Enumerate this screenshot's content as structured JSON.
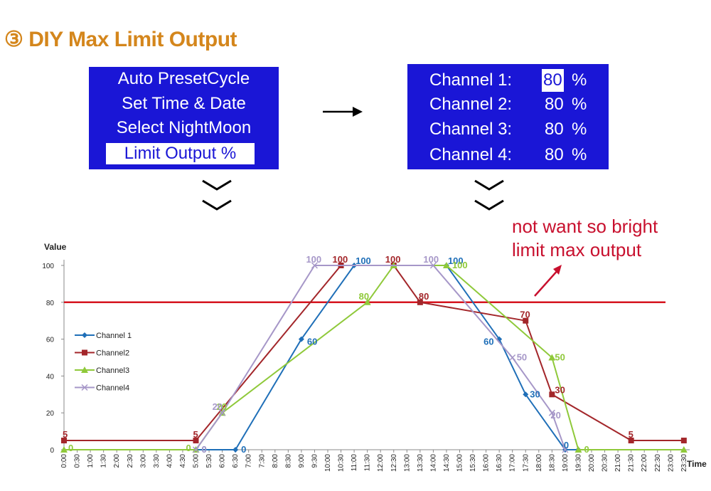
{
  "title": "③ DIY Max Limit Output",
  "menu": {
    "items": [
      "Auto PresetCycle",
      "Set Time & Date",
      "Select NightMoon",
      "Limit Output %"
    ],
    "selected_index": 3
  },
  "channels": [
    {
      "label": "Channel 1:",
      "value": "80",
      "unit": "%"
    },
    {
      "label": "Channel 2:",
      "value": "80",
      "unit": "%"
    },
    {
      "label": "Channel 3:",
      "value": "80",
      "unit": "%"
    },
    {
      "label": "Channel 4:",
      "value": "80",
      "unit": "%"
    }
  ],
  "annotation": [
    "not want so bright",
    "limit max output"
  ],
  "colors": {
    "panel": "#1a16d6",
    "title": "#d4861c",
    "annotation": "#c8102e",
    "limit_line": "#d6151f",
    "channel1": "#1f6fb8",
    "channel2": "#a3262a",
    "channel3": "#8fc93a",
    "channel4": "#a697c8"
  },
  "icons": {
    "arrow": "right-arrow-icon",
    "chevron": "double-chevron-down-icon",
    "pointer": "red-arrow-icon"
  },
  "chart_data": {
    "type": "line",
    "ylabel": "Value",
    "xlabel": "Time",
    "ylim": [
      0,
      100
    ],
    "yticks": [
      "0",
      "20",
      "40",
      "60",
      "80",
      "100"
    ],
    "x": [
      "0:00",
      "0:30",
      "1:00",
      "1:30",
      "2:00",
      "2:30",
      "3:00",
      "3:30",
      "4:00",
      "4:30",
      "5:00",
      "5:30",
      "6:00",
      "6:30",
      "7:00",
      "7:30",
      "8:00",
      "8:30",
      "9:00",
      "9:30",
      "10:00",
      "10:30",
      "11:00",
      "11:30",
      "12:00",
      "12:30",
      "13:00",
      "13:30",
      "14:00",
      "14:30",
      "15:00",
      "15:30",
      "16:00",
      "16:30",
      "17:00",
      "17:30",
      "18:00",
      "18:30",
      "19:00",
      "19:30",
      "20:00",
      "20:30",
      "21:00",
      "21:30",
      "22:00",
      "22:30",
      "23:00",
      "23:30"
    ],
    "limit": 80,
    "grid": false,
    "legend_position": "left",
    "series": [
      {
        "name": "Channel 1",
        "marker": "diamond",
        "points": [
          [
            "5:00",
            0
          ],
          [
            "6:30",
            0
          ],
          [
            "9:00",
            60
          ],
          [
            "11:00",
            100
          ],
          [
            "14:30",
            100
          ],
          [
            "16:30",
            60
          ],
          [
            "17:30",
            30
          ],
          [
            "19:00",
            0
          ],
          [
            "19:30",
            0
          ]
        ],
        "labels": [
          {
            "x": "5:00",
            "y": 0,
            "t": "0"
          },
          {
            "x": "6:30",
            "y": 0,
            "t": "0"
          },
          {
            "x": "9:00",
            "y": 60,
            "t": "60"
          },
          {
            "x": "11:00",
            "y": 100,
            "t": "100"
          },
          {
            "x": "14:30",
            "y": 100,
            "t": "100"
          },
          {
            "x": "16:30",
            "y": 60,
            "t": "60"
          },
          {
            "x": "17:30",
            "y": 30,
            "t": "30"
          },
          {
            "x": "19:00",
            "y": 0,
            "t": "0"
          }
        ]
      },
      {
        "name": "Channel2",
        "marker": "square",
        "points": [
          [
            "0:00",
            5
          ],
          [
            "5:00",
            5
          ],
          [
            "10:30",
            100
          ],
          [
            "12:30",
            100
          ],
          [
            "13:30",
            80
          ],
          [
            "17:30",
            70
          ],
          [
            "18:30",
            30
          ],
          [
            "21:30",
            5
          ],
          [
            "23:30",
            5
          ]
        ],
        "labels": [
          {
            "x": "0:00",
            "y": 5,
            "t": "5"
          },
          {
            "x": "5:00",
            "y": 5,
            "t": "5"
          },
          {
            "x": "10:30",
            "y": 100,
            "t": "100"
          },
          {
            "x": "12:30",
            "y": 100,
            "t": "100"
          },
          {
            "x": "13:30",
            "y": 80,
            "t": "80"
          },
          {
            "x": "17:30",
            "y": 70,
            "t": "70"
          },
          {
            "x": "18:30",
            "y": 30,
            "t": "30"
          },
          {
            "x": "21:30",
            "y": 5,
            "t": "5"
          }
        ]
      },
      {
        "name": "Channel3",
        "marker": "triangle",
        "points": [
          [
            "0:00",
            0
          ],
          [
            "5:00",
            0
          ],
          [
            "6:00",
            20
          ],
          [
            "11:30",
            80
          ],
          [
            "12:30",
            100
          ],
          [
            "14:30",
            100
          ],
          [
            "18:30",
            50
          ],
          [
            "19:30",
            0
          ],
          [
            "23:30",
            0
          ]
        ],
        "labels": [
          {
            "x": "0:00",
            "y": 0,
            "t": "0"
          },
          {
            "x": "5:00",
            "y": 0,
            "t": "0"
          },
          {
            "x": "6:00",
            "y": 20,
            "t": "20"
          },
          {
            "x": "11:30",
            "y": 80,
            "t": "80"
          },
          {
            "x": "14:30",
            "y": 100,
            "t": "100"
          },
          {
            "x": "18:30",
            "y": 50,
            "t": "50"
          },
          {
            "x": "19:30",
            "y": 0,
            "t": "0"
          }
        ]
      },
      {
        "name": "Channel4",
        "marker": "x",
        "points": [
          [
            "5:00",
            0
          ],
          [
            "6:00",
            20
          ],
          [
            "9:30",
            100
          ],
          [
            "14:00",
            100
          ],
          [
            "17:00",
            50
          ],
          [
            "18:30",
            20
          ],
          [
            "19:00",
            0
          ]
        ],
        "labels": [
          {
            "x": "5:00",
            "y": 0,
            "t": "0"
          },
          {
            "x": "6:00",
            "y": 20,
            "t": "20"
          },
          {
            "x": "9:30",
            "y": 100,
            "t": "100"
          },
          {
            "x": "14:00",
            "y": 100,
            "t": "100"
          },
          {
            "x": "17:00",
            "y": 50,
            "t": "50"
          },
          {
            "x": "18:30",
            "y": 20,
            "t": "20"
          }
        ]
      }
    ]
  }
}
